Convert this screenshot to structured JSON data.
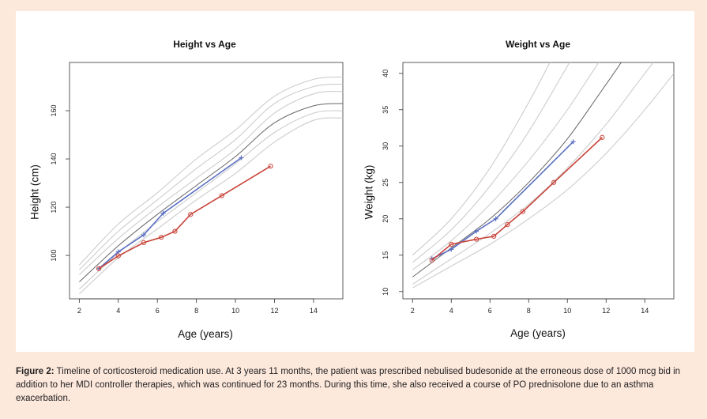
{
  "caption": {
    "label": "Figure 2:",
    "text": " Timeline of corticosteroid medication use. At 3 years 11 months, the patient was prescribed nebulised budesonide at the erroneous dose of 1000 mcg bid in addition to her MDI controller therapies, which was continued for 23 months. During this time, she also received a course of PO prednisolone due to an asthma exacerbation."
  },
  "chart_data": [
    {
      "type": "line",
      "title": "Height vs Age",
      "xlabel": "Age (years)",
      "ylabel": "Height (cm)",
      "xlim": [
        1.5,
        15.5
      ],
      "ylim": [
        82,
        180
      ],
      "xticks": [
        2,
        4,
        6,
        8,
        10,
        12,
        14
      ],
      "yticks": [
        100,
        120,
        140,
        160
      ],
      "grid": false,
      "legend": "none",
      "series": [
        {
          "color": "#5a6fc4",
          "marker": "plus",
          "x": [
            3.0,
            4.0,
            5.3,
            6.3,
            10.3
          ],
          "y": [
            94.5,
            101.5,
            108.5,
            117.5,
            140.5
          ]
        },
        {
          "color": "#c8443a",
          "marker": "circle",
          "x": [
            3.0,
            4.0,
            5.3,
            6.2,
            6.9,
            7.7,
            9.3,
            11.8
          ],
          "y": [
            94.5,
            99.8,
            105.3,
            107.5,
            110.0,
            117.0,
            124.8,
            137.0
          ]
        }
      ],
      "reference_curves": {
        "color": "#cccccc",
        "x": [
          2,
          4,
          6,
          8,
          10,
          12,
          14,
          15.5
        ],
        "curves": [
          [
            84,
            99,
            111,
            123,
            134,
            147,
            156,
            157
          ],
          [
            86,
            101,
            114,
            126,
            138,
            151,
            159,
            160
          ],
          [
            89,
            104,
            117,
            129,
            141,
            155,
            162,
            163
          ],
          [
            92,
            107,
            120,
            132,
            144,
            159,
            167,
            168
          ],
          [
            94,
            110,
            123,
            136,
            148,
            163,
            170,
            171
          ],
          [
            96,
            113,
            126,
            140,
            152,
            166,
            173,
            174
          ]
        ],
        "median_index": 2,
        "median_color": "#666666"
      }
    },
    {
      "type": "line",
      "title": "Weight vs Age",
      "xlabel": "Age (years)",
      "ylabel": "Weight (kg)",
      "xlim": [
        1.5,
        15.5
      ],
      "ylim": [
        9,
        41.5
      ],
      "xticks": [
        2,
        4,
        6,
        8,
        10,
        12,
        14
      ],
      "yticks": [
        10,
        15,
        20,
        25,
        30,
        35,
        40
      ],
      "grid": false,
      "legend": "none",
      "series": [
        {
          "color": "#5a6fc4",
          "marker": "plus",
          "x": [
            3.0,
            4.0,
            5.3,
            6.3,
            10.3
          ],
          "y": [
            14.5,
            15.8,
            18.3,
            20.0,
            30.6
          ]
        },
        {
          "color": "#c8443a",
          "marker": "circle",
          "x": [
            3.0,
            4.0,
            5.3,
            6.2,
            6.9,
            7.7,
            9.3,
            11.8
          ],
          "y": [
            14.3,
            16.5,
            17.2,
            17.6,
            19.2,
            21.0,
            25.0,
            31.2
          ]
        }
      ],
      "reference_curves": {
        "color": "#cccccc",
        "x": [
          2,
          4,
          6,
          8,
          10,
          12,
          14,
          15.5
        ],
        "curves": [
          [
            10.5,
            13.5,
            16.5,
            20.0,
            24.0,
            29.0,
            35.0,
            40.0
          ],
          [
            11.0,
            14.5,
            18.0,
            22.0,
            27.0,
            33.0,
            40.0,
            45.0
          ],
          [
            12.0,
            16.0,
            20.0,
            25.0,
            31.0,
            38.5,
            46.0,
            50.0
          ],
          [
            13.0,
            17.0,
            22.0,
            28.0,
            35.0,
            43.0,
            50.0,
            54.0
          ],
          [
            14.0,
            18.5,
            24.5,
            32.0,
            41.0,
            50.0,
            56.0,
            60.0
          ],
          [
            15.0,
            20.0,
            27.0,
            36.0,
            46.0,
            55.0,
            60.0,
            62.0
          ]
        ],
        "median_index": 2,
        "median_color": "#666666"
      }
    }
  ]
}
